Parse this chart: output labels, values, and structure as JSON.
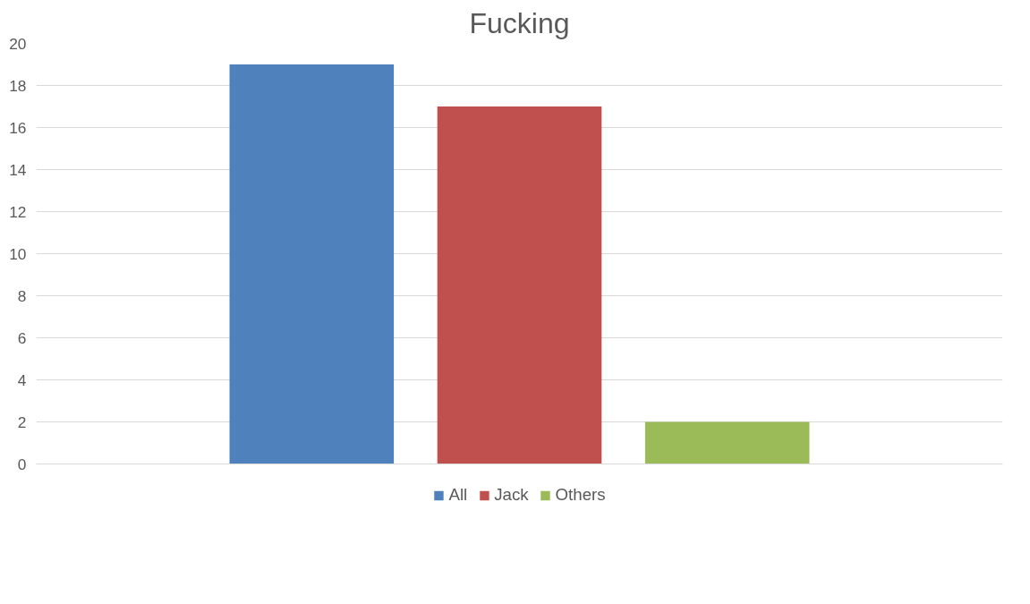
{
  "chart_data": {
    "type": "bar",
    "title": "Fucking",
    "categories": [
      null
    ],
    "series": [
      {
        "name": "All",
        "color": "#4f81bd",
        "values": [
          19
        ]
      },
      {
        "name": "Jack",
        "color": "#c0504d",
        "values": [
          17
        ]
      },
      {
        "name": "Others",
        "color": "#9bbb59",
        "values": [
          2
        ]
      }
    ],
    "ylim": [
      0,
      20
    ],
    "yticks": [
      0,
      2,
      4,
      6,
      8,
      10,
      12,
      14,
      16,
      18,
      20
    ],
    "grid": "y",
    "legend": "bottom",
    "tick_labels": "y"
  }
}
